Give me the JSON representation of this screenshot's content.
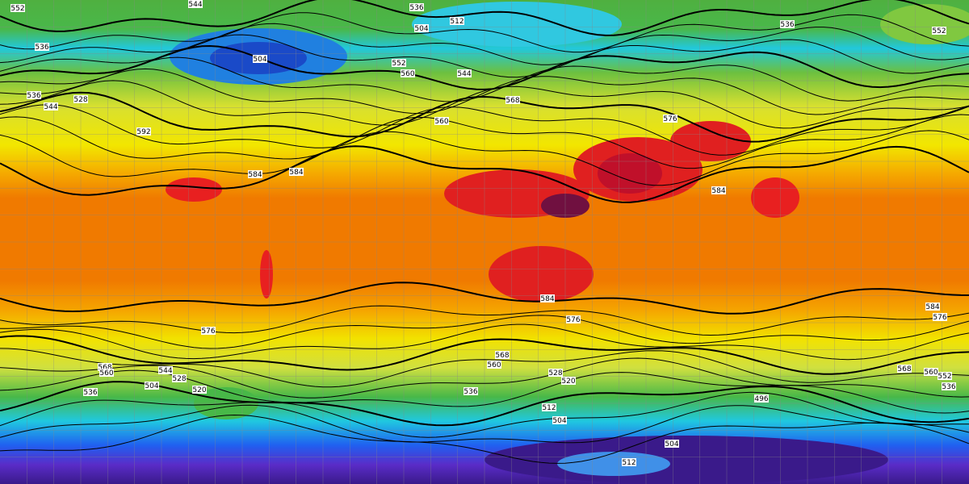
{
  "contour_labels": [
    "552",
    "544",
    "536",
    "504",
    "512",
    "536",
    "552",
    "536",
    "504",
    "552",
    "560",
    "544",
    "528",
    "536",
    "544",
    "560",
    "568",
    "576",
    "592",
    "584",
    "584",
    "584",
    "584",
    "576",
    "576",
    "568",
    "560",
    "536",
    "504",
    "520",
    "528",
    "544",
    "536",
    "560",
    "568",
    "528",
    "520",
    "512",
    "504",
    "496",
    "512",
    "504",
    "584",
    "576",
    "568",
    "560",
    "552",
    "536"
  ]
}
